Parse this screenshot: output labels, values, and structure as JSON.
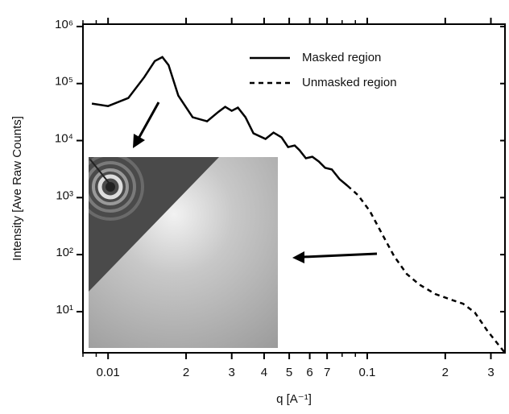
{
  "chart_data": {
    "type": "line",
    "xlabel": "q [A⁻¹]",
    "ylabel": "Intensity [Ave Raw Counts]",
    "xscale": "log",
    "yscale": "log",
    "xlim": [
      0.008,
      0.34
    ],
    "ylim": [
      1.9,
      1100000
    ],
    "xticks": [
      0.01,
      {
        "value": 0.02,
        "label": "2"
      },
      {
        "value": 0.03,
        "label": "3"
      },
      {
        "value": 0.04,
        "label": "4"
      },
      {
        "value": 0.05,
        "label": "5"
      },
      {
        "value": 0.06,
        "label": "6"
      },
      {
        "value": 0.07,
        "label": "7"
      },
      0.1,
      {
        "value": 0.2,
        "label": "2"
      },
      {
        "value": 0.3,
        "label": "3"
      }
    ],
    "xminorticks": [
      0.008,
      0.009,
      0.08,
      0.09
    ],
    "yticks": [
      {
        "value": 10,
        "label": "10¹"
      },
      {
        "value": 100,
        "label": "10²"
      },
      {
        "value": 1000,
        "label": "10³"
      },
      {
        "value": 10000,
        "label": "10⁴"
      },
      {
        "value": 100000,
        "label": "10⁵"
      },
      {
        "value": 1000000,
        "label": "10⁶"
      }
    ],
    "legend": "top-right",
    "series": [
      {
        "name": "Masked region",
        "color": "#000000",
        "linestyle": "solid",
        "x": [
          0.00866,
          0.01,
          0.01197,
          0.0138,
          0.01515,
          0.0162,
          0.01712,
          0.01866,
          0.0212,
          0.0241,
          0.0267,
          0.0283,
          0.03,
          0.0317,
          0.0339,
          0.0364,
          0.0405,
          0.0435,
          0.0467,
          0.0495,
          0.0525,
          0.0548,
          0.058,
          0.0614,
          0.065,
          0.0688,
          0.073,
          0.0782,
          0.0838
        ],
        "values": [
          44500,
          40300,
          55700,
          129700,
          248000,
          291000,
          211000,
          61500,
          25600,
          21800,
          32100,
          39100,
          33200,
          37800,
          25600,
          13400,
          10700,
          13800,
          11400,
          7700,
          8200,
          6770,
          4900,
          5200,
          4300,
          3320,
          3110,
          2110,
          1620
        ]
      },
      {
        "name": "Unmasked region",
        "color": "#000000",
        "linestyle": "dashed",
        "x": [
          0.0838,
          0.0922,
          0.1024,
          0.114,
          0.127,
          0.142,
          0.1586,
          0.183,
          0.21,
          0.234,
          0.26,
          0.29,
          0.324,
          0.34
        ],
        "values": [
          1620,
          1100,
          577,
          232,
          93.8,
          45.9,
          30.1,
          20.4,
          16.3,
          13.8,
          9.7,
          4.7,
          2.48,
          1.9
        ]
      }
    ]
  }
}
